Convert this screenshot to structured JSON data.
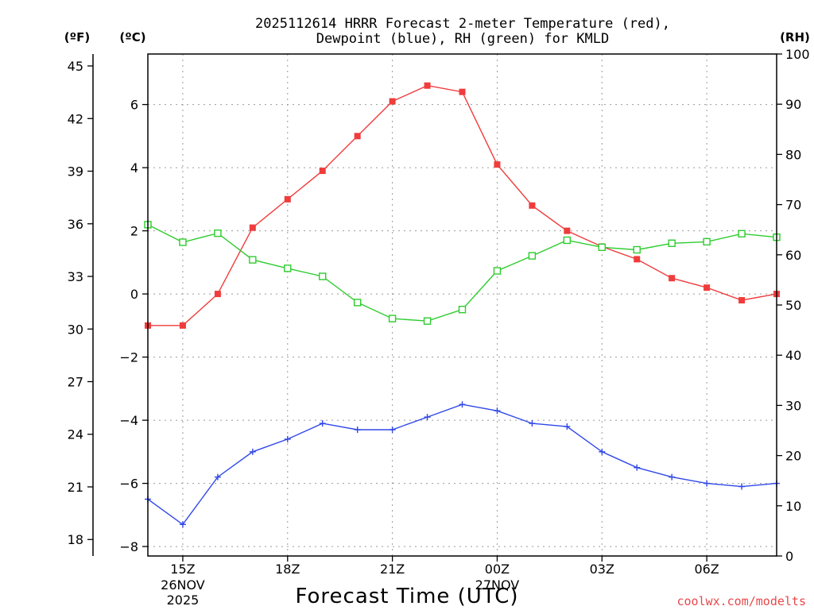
{
  "chart_data": {
    "type": "line",
    "title_line1": "2025112614 HRRR Forecast 2-meter Temperature (red),",
    "title_line2": "Dewpoint (blue), RH (green) for KMLD",
    "xlabel": "Forecast Time (UTC)",
    "credit": "coolwx.com/modelts",
    "units": {
      "left_f": "(ºF)",
      "left_c": "(ºC)",
      "right_rh": "(RH)"
    },
    "x": [
      14,
      15,
      16,
      17,
      18,
      19,
      20,
      21,
      22,
      23,
      24,
      25,
      26,
      27,
      28,
      29,
      30,
      31,
      32
    ],
    "xlim": [
      14,
      32
    ],
    "x_ticks": [
      {
        "x": 15,
        "label": "15Z",
        "sub1": "26NOV",
        "sub2": "2025"
      },
      {
        "x": 18,
        "label": "18Z"
      },
      {
        "x": 21,
        "label": "21Z"
      },
      {
        "x": 24,
        "label": "00Z",
        "sub1": "27NOV"
      },
      {
        "x": 27,
        "label": "03Z"
      },
      {
        "x": 30,
        "label": "06Z"
      }
    ],
    "celsius_axis": {
      "ylim": [
        -8.3,
        7.6
      ],
      "ticks": [
        6,
        4,
        2,
        0,
        -2,
        -4,
        -6,
        -8
      ],
      "tick_labels": [
        "6",
        "4",
        "2",
        "0",
        "−2",
        "−4",
        "−6",
        "−8"
      ]
    },
    "fahrenheit_axis": {
      "ticks": [
        45,
        42,
        39,
        36,
        33,
        30,
        27,
        24,
        21,
        18
      ],
      "tick_labels": [
        "45",
        "42",
        "39",
        "36",
        "33",
        "30",
        "27",
        "24",
        "21",
        "18"
      ]
    },
    "rh_axis": {
      "ylim": [
        0,
        100
      ],
      "ticks": [
        0,
        10,
        20,
        30,
        40,
        50,
        60,
        70,
        80,
        90,
        100
      ],
      "tick_labels": [
        "0",
        "10",
        "20",
        "30",
        "40",
        "50",
        "60",
        "70",
        "80",
        "90",
        "100"
      ]
    },
    "series": [
      {
        "name": "2-meter Temperature",
        "color": "red",
        "hex": "#f03c3c",
        "marker": "filled-square",
        "axis": "celsius",
        "values": [
          -1.0,
          -1.0,
          0.0,
          2.1,
          3.0,
          3.9,
          5.0,
          6.1,
          6.6,
          6.4,
          4.1,
          2.8,
          2.0,
          1.5,
          1.1,
          0.5,
          0.2,
          -0.2,
          0.0
        ]
      },
      {
        "name": "Dewpoint",
        "color": "blue",
        "hex": "#3048e8",
        "marker": "plus",
        "axis": "celsius",
        "values": [
          -6.5,
          -7.3,
          -5.8,
          -5.0,
          -4.6,
          -4.1,
          -4.3,
          -4.3,
          -3.9,
          -3.5,
          -3.7,
          -4.1,
          -4.2,
          -5.0,
          -5.5,
          -5.8,
          -6.0,
          -6.1,
          -6.0
        ]
      },
      {
        "name": "RH",
        "color": "green",
        "hex": "#2ecc2e",
        "marker": "open-square",
        "axis": "rh",
        "values": [
          66,
          62.5,
          64.3,
          59,
          57.3,
          55.7,
          50.5,
          47.3,
          46.8,
          49.1,
          56.8,
          59.8,
          62.9,
          61.5,
          61,
          62.3,
          62.6,
          64.2,
          63.5
        ]
      }
    ]
  }
}
